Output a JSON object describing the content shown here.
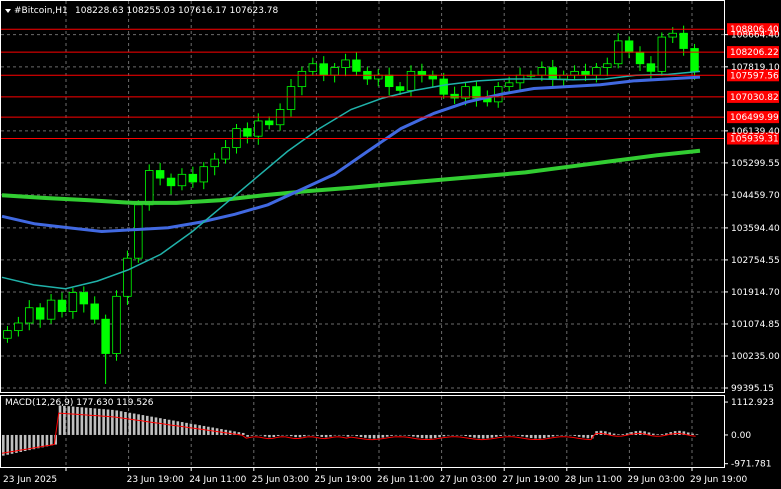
{
  "header": {
    "symbol": "#Bitcoin,H1",
    "ohlc": "108228.63 108255.03 107616.17 107623.78"
  },
  "macd": {
    "label": "MACD(12,26,9) 177.630 119.526",
    "ticks": [
      "1112.923",
      "0.00",
      "-971.781"
    ]
  },
  "price_axis": {
    "ticks": [
      "108664.40",
      "107819.10",
      "106139.40",
      "105299.55",
      "104459.70",
      "103594.40",
      "102754.55",
      "101914.70",
      "101074.85",
      "100235.00",
      "99395.15"
    ]
  },
  "levels": [
    "108806.40",
    "108206.22",
    "107597.56",
    "107030.82",
    "106499.99",
    "105939.31"
  ],
  "time_axis": {
    "labels": [
      "23 Jun 2025",
      "23 Jun 19:00",
      "24 Jun 11:00",
      "25 Jun 03:00",
      "25 Jun 19:00",
      "26 Jun 11:00",
      "27 Jun 03:00",
      "27 Jun 19:00",
      "28 Jun 11:00",
      "29 Jun 03:00",
      "29 Jun 19:00"
    ]
  },
  "chart_data": {
    "type": "candlestick",
    "ylim": [
      99395.15,
      109100
    ],
    "macd_ylim": [
      -1050,
      1250
    ],
    "close_series_approx": [
      100900,
      101100,
      101500,
      101200,
      101700,
      101400,
      101900,
      101600,
      101200,
      100300,
      101800,
      102800,
      104200,
      105100,
      104900,
      104700,
      105000,
      104800,
      105200,
      105400,
      105700,
      106200,
      106000,
      106400,
      106300,
      106700,
      107300,
      107700,
      107900,
      107600,
      107800,
      108000,
      107700,
      107500,
      107600,
      107300,
      107200,
      107700,
      107600,
      107500,
      107100,
      107000,
      107300,
      107000,
      106900,
      107300,
      107400,
      107600,
      107600,
      107800,
      107500,
      107600,
      107700,
      107600,
      107800,
      107900,
      108500,
      108200,
      107900,
      107700,
      108600,
      108700,
      108300,
      107700
    ],
    "ma_fast_approx": [
      102300,
      102100,
      102000,
      102200,
      102500,
      102900,
      103500,
      104200,
      104900,
      105600,
      106200,
      106700,
      107000,
      107200,
      107350,
      107450,
      107500,
      107500,
      107480,
      107500,
      107600,
      107620,
      107700
    ],
    "ma_mid_approx": [
      103900,
      103700,
      103600,
      103500,
      103550,
      103600,
      103750,
      103950,
      104200,
      104600,
      105000,
      105600,
      106200,
      106600,
      106900,
      107100,
      107250,
      107300,
      107350,
      107450,
      107500,
      107550
    ],
    "ma_slow_approx": [
      104450,
      104380,
      104320,
      104250,
      104250,
      104320,
      104450,
      104560,
      104650,
      104750,
      104850,
      104950,
      105050,
      105200,
      105350,
      105500,
      105620
    ]
  },
  "colors": {
    "bg": "#000000",
    "candle": "#00ff00",
    "ma_fast": "#20b2aa",
    "ma_mid": "#4169e1",
    "ma_slow": "#32cd32",
    "level": "#ff0000",
    "macd_hist": "#c0c0c0",
    "macd_signal": "#ff0000"
  }
}
